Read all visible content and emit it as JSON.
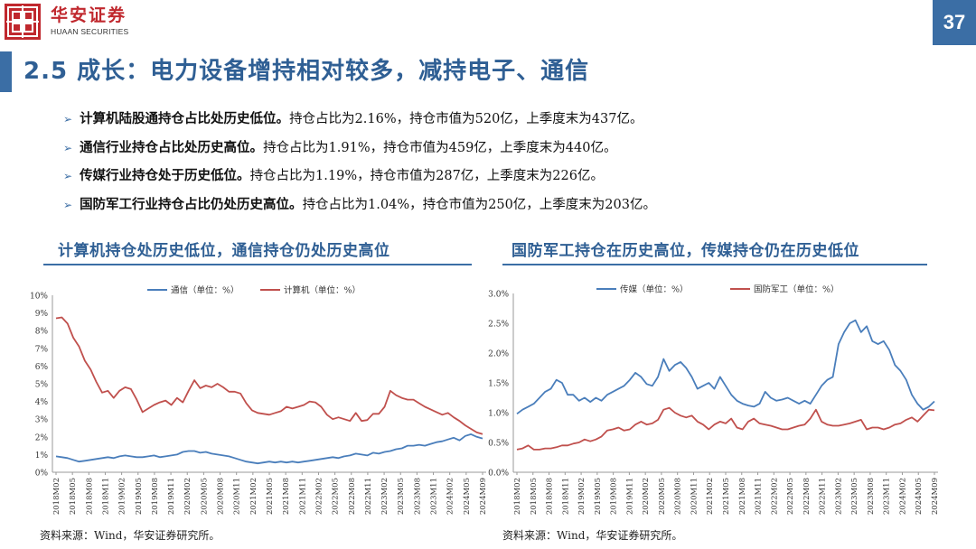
{
  "header": {
    "logo_cn": "华安证券",
    "logo_en": "HUAAN SECURITIES",
    "page_number": "37",
    "brand_color": "#c0282e",
    "accent_color": "#3b6ea5"
  },
  "title": "2.5 成长：电力设备增持相对较多，减持电子、通信",
  "bullets": [
    {
      "bold": "计算机陆股通持仓占比处历史低位。",
      "text": "持仓占比为2.16%，持仓市值为520亿，上季度末为437亿。"
    },
    {
      "bold": "通信行业持仓占比处历史高位。",
      "text": "持仓占比为1.91%，持仓市值为459亿，上季度末为440亿。"
    },
    {
      "bold": "传媒行业持仓处于历史低位。",
      "text": "持仓占比为1.19%，持仓市值为287亿，上季度末为226亿。"
    },
    {
      "bold": "国防军工行业持仓占比仍处历史高位。",
      "text": "持仓占比为1.04%，持仓市值为250亿，上季度末为203亿。"
    }
  ],
  "left_section": {
    "title": "计算机持仓处历史低位，通信持仓仍处历史高位",
    "source": "资料来源：Wind，华安证券研究所。"
  },
  "right_section": {
    "title": "国防军工持仓在历史高位，传媒持仓仍在历史低位",
    "source": "资料来源：Wind，华安证券研究所。"
  },
  "chart_data": [
    {
      "type": "line",
      "x_tick_labels": [
        "2018M02",
        "2018M05",
        "2018M08",
        "2018M11",
        "2019M02",
        "2019M05",
        "2019M08",
        "2019M11",
        "2020M02",
        "2020M05",
        "2020M08",
        "2020M11",
        "2021M02",
        "2021M05",
        "2021M08",
        "2021M11",
        "2022M02",
        "2022M05",
        "2022M08",
        "2022M11",
        "2023M02",
        "2023M05",
        "2023M08",
        "2023M11",
        "2024M02",
        "2024M05",
        "2024M09"
      ],
      "y_ticks": [
        "0%",
        "1%",
        "2%",
        "3%",
        "4%",
        "5%",
        "6%",
        "7%",
        "8%",
        "9%",
        "10%"
      ],
      "ylim": [
        0,
        10
      ],
      "legend_position": "top",
      "series": [
        {
          "name": "通信（单位：%）",
          "color": "#4a7ebb",
          "values": [
            0.9,
            0.85,
            0.8,
            0.7,
            0.6,
            0.65,
            0.7,
            0.75,
            0.8,
            0.85,
            0.8,
            0.9,
            0.95,
            0.9,
            0.85,
            0.85,
            0.9,
            0.95,
            0.85,
            0.9,
            0.95,
            1.0,
            1.15,
            1.2,
            1.2,
            1.1,
            1.15,
            1.05,
            1.0,
            0.95,
            0.9,
            0.8,
            0.7,
            0.6,
            0.55,
            0.5,
            0.55,
            0.6,
            0.55,
            0.6,
            0.55,
            0.6,
            0.55,
            0.6,
            0.65,
            0.7,
            0.75,
            0.8,
            0.85,
            0.8,
            0.9,
            0.95,
            1.05,
            1.0,
            0.95,
            1.1,
            1.05,
            1.15,
            1.2,
            1.3,
            1.35,
            1.5,
            1.5,
            1.55,
            1.5,
            1.6,
            1.7,
            1.75,
            1.85,
            1.95,
            1.8,
            2.05,
            2.15,
            2.0,
            1.91
          ]
        },
        {
          "name": "计算机（单位：%）",
          "color": "#c0504d",
          "values": [
            8.7,
            8.75,
            8.4,
            7.6,
            7.1,
            6.3,
            5.8,
            5.1,
            4.5,
            4.6,
            4.2,
            4.6,
            4.8,
            4.7,
            4.1,
            3.4,
            3.6,
            3.8,
            3.95,
            4.05,
            3.8,
            4.2,
            3.95,
            4.6,
            5.2,
            4.75,
            4.9,
            4.8,
            5.0,
            4.8,
            4.55,
            4.55,
            4.45,
            3.9,
            3.5,
            3.35,
            3.3,
            3.25,
            3.35,
            3.45,
            3.7,
            3.6,
            3.7,
            3.8,
            4.0,
            3.95,
            3.7,
            3.25,
            3.0,
            3.1,
            3.0,
            2.9,
            3.35,
            2.9,
            2.95,
            3.3,
            3.3,
            3.7,
            4.6,
            4.35,
            4.2,
            4.1,
            4.1,
            3.9,
            3.7,
            3.55,
            3.4,
            3.25,
            3.35,
            3.1,
            2.9,
            2.65,
            2.45,
            2.25,
            2.16
          ]
        }
      ]
    },
    {
      "type": "line",
      "x_tick_labels": [
        "2018M02",
        "2018M05",
        "2018M08",
        "2018M11",
        "2019M02",
        "2019M05",
        "2019M08",
        "2019M11",
        "2020M02",
        "2020M05",
        "2020M08",
        "2020M11",
        "2021M02",
        "2021M05",
        "2021M08",
        "2021M11",
        "2022M02",
        "2022M05",
        "2022M08",
        "2022M11",
        "2023M02",
        "2023M05",
        "2023M08",
        "2023M11",
        "2024M02",
        "2024M05",
        "2024M09"
      ],
      "y_ticks": [
        "0.0%",
        "0.5%",
        "1.0%",
        "1.5%",
        "2.0%",
        "2.5%",
        "3.0%"
      ],
      "ylim": [
        0,
        3
      ],
      "legend_position": "top",
      "series": [
        {
          "name": "传媒（单位：%）",
          "color": "#4a7ebb",
          "values": [
            0.98,
            1.05,
            1.1,
            1.15,
            1.25,
            1.35,
            1.4,
            1.55,
            1.5,
            1.3,
            1.3,
            1.2,
            1.25,
            1.18,
            1.25,
            1.2,
            1.3,
            1.35,
            1.4,
            1.45,
            1.55,
            1.67,
            1.6,
            1.48,
            1.45,
            1.6,
            1.9,
            1.7,
            1.8,
            1.85,
            1.75,
            1.6,
            1.4,
            1.45,
            1.5,
            1.4,
            1.6,
            1.45,
            1.3,
            1.2,
            1.15,
            1.12,
            1.1,
            1.15,
            1.35,
            1.25,
            1.2,
            1.22,
            1.25,
            1.2,
            1.15,
            1.2,
            1.15,
            1.3,
            1.45,
            1.55,
            1.6,
            2.15,
            2.35,
            2.5,
            2.55,
            2.35,
            2.45,
            2.2,
            2.15,
            2.2,
            2.05,
            1.8,
            1.7,
            1.55,
            1.3,
            1.15,
            1.05,
            1.1,
            1.19
          ]
        },
        {
          "name": "国防军工（单位：%）",
          "color": "#c0504d",
          "values": [
            0.38,
            0.4,
            0.45,
            0.38,
            0.38,
            0.4,
            0.4,
            0.42,
            0.45,
            0.45,
            0.48,
            0.5,
            0.55,
            0.52,
            0.55,
            0.6,
            0.7,
            0.72,
            0.75,
            0.7,
            0.72,
            0.8,
            0.85,
            0.8,
            0.82,
            0.88,
            1.05,
            1.08,
            1.0,
            0.95,
            0.92,
            0.95,
            0.85,
            0.8,
            0.72,
            0.8,
            0.85,
            0.82,
            0.9,
            0.75,
            0.72,
            0.85,
            0.9,
            0.82,
            0.8,
            0.78,
            0.75,
            0.72,
            0.72,
            0.75,
            0.78,
            0.8,
            0.9,
            1.05,
            0.85,
            0.8,
            0.78,
            0.78,
            0.8,
            0.82,
            0.85,
            0.88,
            0.72,
            0.75,
            0.75,
            0.72,
            0.75,
            0.8,
            0.82,
            0.88,
            0.92,
            0.85,
            0.95,
            1.05,
            1.04
          ]
        }
      ]
    }
  ]
}
